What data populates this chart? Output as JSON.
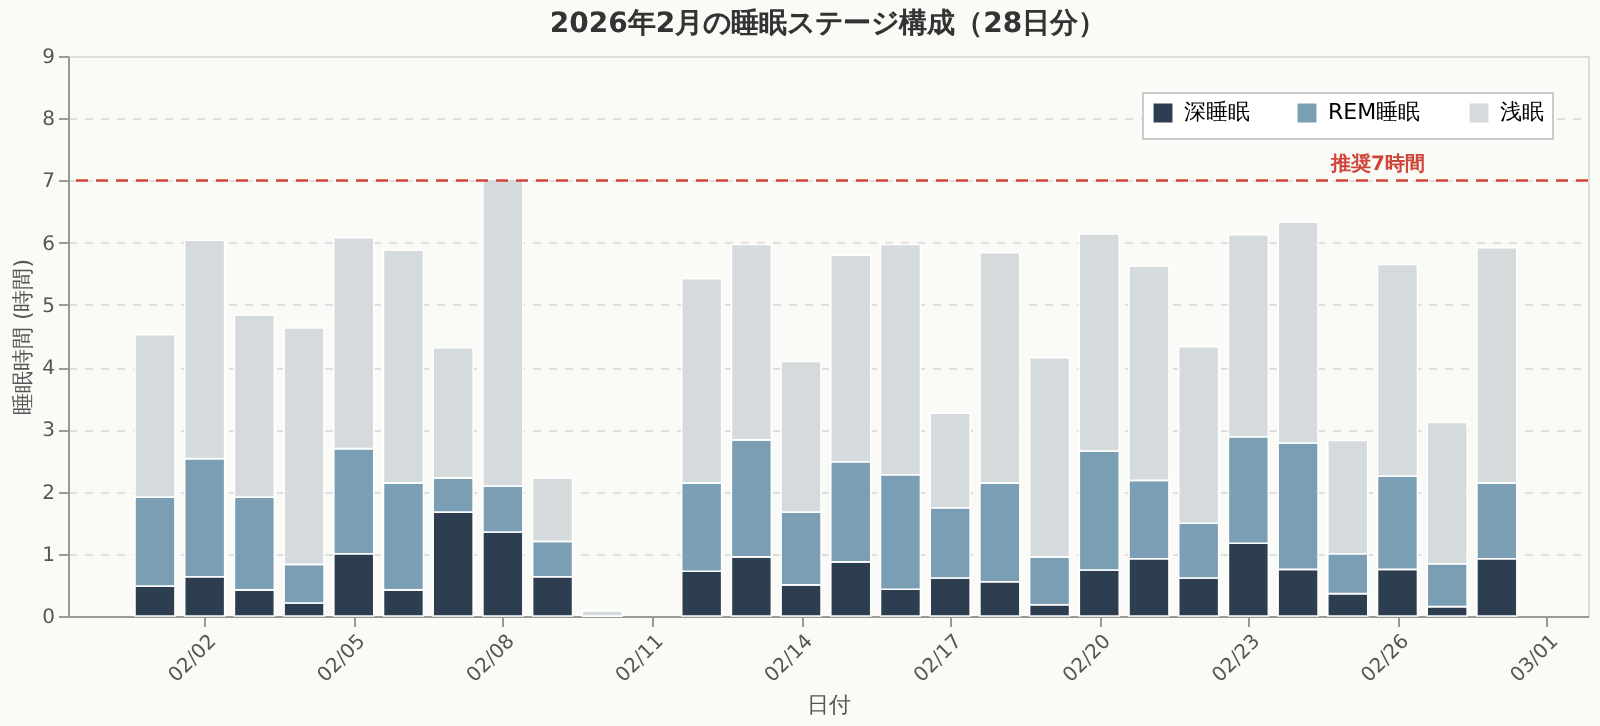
{
  "chart_data": {
    "type": "bar",
    "stacked": true,
    "title": "2026年2月の睡眠ステージ構成（28日分）",
    "xlabel": "日付",
    "ylabel": "睡眠時間 (時間)",
    "x": [
      "2026-02-01",
      "2026-02-02",
      "2026-02-03",
      "2026-02-04",
      "2026-02-05",
      "2026-02-06",
      "2026-02-07",
      "2026-02-08",
      "2026-02-09",
      "2026-02-10",
      "2026-02-11",
      "2026-02-12",
      "2026-02-13",
      "2026-02-14",
      "2026-02-15",
      "2026-02-16",
      "2026-02-17",
      "2026-02-18",
      "2026-02-19",
      "2026-02-20",
      "2026-02-21",
      "2026-02-22",
      "2026-02-23",
      "2026-02-24",
      "2026-02-25",
      "2026-02-26",
      "2026-02-27",
      "2026-02-28"
    ],
    "series": [
      {
        "name": "深睡眠",
        "color": "#2c3e50",
        "values": [
          0.48,
          0.63,
          0.42,
          0.21,
          1.0,
          0.42,
          1.67,
          1.35,
          0.63,
          0,
          null,
          0.72,
          0.95,
          0.5,
          0.87,
          0.43,
          0.61,
          0.55,
          0.18,
          0.74,
          0.92,
          0.61,
          1.17,
          0.75,
          0.36,
          0.75,
          0.15,
          0.92
        ]
      },
      {
        "name": "REM睡眠",
        "color": "#7a9fb5",
        "values": [
          1.43,
          1.9,
          1.49,
          0.62,
          1.69,
          1.72,
          0.55,
          0.74,
          0.57,
          0,
          null,
          1.42,
          1.88,
          1.17,
          1.61,
          1.84,
          1.13,
          1.59,
          0.77,
          1.91,
          1.26,
          0.88,
          1.71,
          2.03,
          0.64,
          1.5,
          0.69,
          1.22
        ]
      },
      {
        "name": "浅眠",
        "color": "#d5dbdd",
        "values": [
          2.61,
          3.51,
          2.93,
          3.8,
          3.39,
          3.74,
          2.09,
          4.93,
          1.02,
          0.08,
          null,
          3.28,
          3.14,
          2.42,
          3.32,
          3.7,
          1.52,
          3.7,
          3.2,
          3.49,
          3.44,
          2.84,
          3.25,
          3.55,
          1.82,
          3.4,
          2.27,
          3.78
        ]
      }
    ],
    "xlim": [
      "2026-01-30T06:00",
      "2026-03-01T20:00"
    ],
    "xticks": [
      {
        "value": "2026-02-02",
        "label": "02/02"
      },
      {
        "value": "2026-02-05",
        "label": "02/05"
      },
      {
        "value": "2026-02-08",
        "label": "02/08"
      },
      {
        "value": "2026-02-11",
        "label": "02/11"
      },
      {
        "value": "2026-02-14",
        "label": "02/14"
      },
      {
        "value": "2026-02-17",
        "label": "02/17"
      },
      {
        "value": "2026-02-20",
        "label": "02/20"
      },
      {
        "value": "2026-02-23",
        "label": "02/23"
      },
      {
        "value": "2026-02-26",
        "label": "02/26"
      },
      {
        "value": "2026-03-01",
        "label": "03/01"
      }
    ],
    "ylim": [
      0,
      9
    ],
    "yticks": [
      0,
      1,
      2,
      3,
      4,
      5,
      6,
      7,
      8,
      9
    ],
    "ref_lines": [
      {
        "axis": "y",
        "value": 7,
        "label": "推奨7時間",
        "color": "#d0453a",
        "line_style": "dashed"
      }
    ],
    "grid": "y",
    "legend": "top right"
  }
}
